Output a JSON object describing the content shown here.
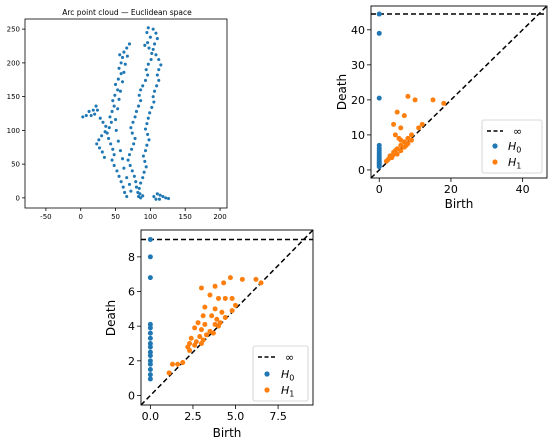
{
  "chart_data": [
    {
      "type": "scatter",
      "title": "Arc point cloud — Euclidean space",
      "xlabel": "",
      "ylabel": "",
      "xlim": [
        -80,
        210
      ],
      "ylim": [
        -15,
        265
      ],
      "x_ticks": [
        -50,
        0,
        50,
        100,
        150,
        200
      ],
      "y_ticks": [
        0,
        50,
        100,
        150,
        200,
        250
      ],
      "grid": false,
      "color": "#1f77b4",
      "series": [
        {
          "name": "",
          "points": [
            [
              95,
              245
            ],
            [
              97,
              252
            ],
            [
              100,
              238
            ],
            [
              96,
              230
            ],
            [
              92,
              226
            ],
            [
              98,
              222
            ],
            [
              102,
              214
            ],
            [
              101,
              205
            ],
            [
              97,
              198
            ],
            [
              94,
              190
            ],
            [
              96,
              182
            ],
            [
              93,
              174
            ],
            [
              89,
              166
            ],
            [
              86,
              160
            ],
            [
              84,
              152
            ],
            [
              86,
              144
            ],
            [
              83,
              136
            ],
            [
              80,
              128
            ],
            [
              78,
              120
            ],
            [
              75,
              112
            ],
            [
              72,
              104
            ],
            [
              74,
              96
            ],
            [
              78,
              88
            ],
            [
              76,
              80
            ],
            [
              73,
              72
            ],
            [
              70,
              64
            ],
            [
              68,
              56
            ],
            [
              71,
              48
            ],
            [
              74,
              40
            ],
            [
              77,
              32
            ],
            [
              79,
              24
            ],
            [
              80,
              16
            ],
            [
              82,
              8
            ],
            [
              83,
              2
            ],
            [
              86,
              0
            ],
            [
              89,
              3
            ],
            [
              104,
              250
            ],
            [
              108,
              244
            ],
            [
              110,
              236
            ],
            [
              106,
              228
            ],
            [
              104,
              220
            ],
            [
              108,
              212
            ],
            [
              112,
              205
            ],
            [
              115,
              197
            ],
            [
              112,
              190
            ],
            [
              110,
              182
            ],
            [
              112,
              174
            ],
            [
              109,
              166
            ],
            [
              106,
              158
            ],
            [
              104,
              150
            ],
            [
              105,
              142
            ],
            [
              102,
              134
            ],
            [
              99,
              126
            ],
            [
              97,
              118
            ],
            [
              95,
              110
            ],
            [
              93,
              102
            ],
            [
              96,
              94
            ],
            [
              98,
              86
            ],
            [
              95,
              78
            ],
            [
              93,
              70
            ],
            [
              90,
              62
            ],
            [
              92,
              54
            ],
            [
              94,
              46
            ],
            [
              91,
              38
            ],
            [
              89,
              30
            ],
            [
              86,
              22
            ],
            [
              84,
              14
            ],
            [
              85,
              6
            ],
            [
              56,
              212
            ],
            [
              60,
              208
            ],
            [
              58,
              200
            ],
            [
              55,
              192
            ],
            [
              58,
              184
            ],
            [
              54,
              176
            ],
            [
              50,
              168
            ],
            [
              53,
              160
            ],
            [
              49,
              152
            ],
            [
              46,
              144
            ],
            [
              48,
              136
            ],
            [
              45,
              128
            ],
            [
              42,
              120
            ],
            [
              44,
              112
            ],
            [
              41,
              104
            ],
            [
              38,
              96
            ],
            [
              40,
              88
            ],
            [
              43,
              80
            ],
            [
              46,
              72
            ],
            [
              48,
              64
            ],
            [
              45,
              56
            ],
            [
              48,
              48
            ],
            [
              52,
              40
            ],
            [
              55,
              32
            ],
            [
              58,
              24
            ],
            [
              61,
              16
            ],
            [
              63,
              8
            ],
            [
              66,
              2
            ],
            [
              62,
              216
            ],
            [
              66,
              222
            ],
            [
              70,
              228
            ],
            [
              67,
              210
            ],
            [
              64,
              198
            ],
            [
              62,
              186
            ],
            [
              60,
              172
            ],
            [
              57,
              158
            ],
            [
              55,
              146
            ],
            [
              53,
              132
            ],
            [
              50,
              116
            ],
            [
              51,
              100
            ],
            [
              54,
              84
            ],
            [
              57,
              70
            ],
            [
              60,
              58
            ],
            [
              62,
              44
            ],
            [
              66,
              30
            ],
            [
              70,
              20
            ],
            [
              72,
              10
            ],
            [
              18,
              130
            ],
            [
              22,
              136
            ],
            [
              24,
              130
            ],
            [
              20,
              124
            ],
            [
              15,
              122
            ],
            [
              12,
              128
            ],
            [
              8,
              122
            ],
            [
              3,
              120
            ],
            [
              28,
              118
            ],
            [
              32,
              112
            ],
            [
              36,
              106
            ],
            [
              35,
              98
            ],
            [
              30,
              92
            ],
            [
              26,
              86
            ],
            [
              23,
              80
            ],
            [
              27,
              74
            ],
            [
              31,
              68
            ],
            [
              34,
              60
            ],
            [
              105,
              2
            ],
            [
              110,
              6
            ],
            [
              114,
              4
            ],
            [
              118,
              2
            ],
            [
              122,
              0
            ],
            [
              126,
              -1
            ],
            [
              108,
              -2
            ],
            [
              113,
              -2
            ]
          ]
        }
      ]
    },
    {
      "type": "scatter",
      "title": "",
      "xlabel": "Birth",
      "ylabel": "Death",
      "xlim": [
        -2.3,
        46.8
      ],
      "ylim": [
        -2.3,
        46.8
      ],
      "x_ticks": [
        0,
        20,
        40
      ],
      "y_ticks": [
        0,
        10,
        20,
        30,
        40
      ],
      "infinity_level": 44.5,
      "diagonal": true,
      "legend": {
        "position": "lower-right",
        "entries": [
          "∞",
          "H0",
          "H1"
        ]
      },
      "series": [
        {
          "name": "H0",
          "color": "#1f77b4",
          "points": [
            [
              0,
              44.5
            ],
            [
              0,
              39
            ],
            [
              0,
              20.5
            ],
            [
              0,
              7
            ],
            [
              0,
              6.2
            ],
            [
              0,
              5.5
            ],
            [
              0,
              4.8
            ],
            [
              0,
              4.2
            ],
            [
              0,
              3.6
            ],
            [
              0,
              3.1
            ],
            [
              0,
              2.6
            ],
            [
              0,
              2.1
            ],
            [
              0,
              1.7
            ],
            [
              0,
              1.3
            ],
            [
              0,
              0.9
            ]
          ]
        },
        {
          "name": "H1",
          "color": "#ff7f0e",
          "points": [
            [
              8,
              21
            ],
            [
              10,
              20
            ],
            [
              15,
              20
            ],
            [
              5,
              16.5
            ],
            [
              7,
              15.5
            ],
            [
              4,
              13
            ],
            [
              6,
              12
            ],
            [
              4.5,
              10
            ],
            [
              5.5,
              9
            ],
            [
              6,
              8.5
            ],
            [
              7,
              8
            ],
            [
              8,
              9
            ],
            [
              9,
              8.5
            ],
            [
              7.5,
              7
            ],
            [
              6,
              7
            ],
            [
              5,
              6
            ],
            [
              4,
              5
            ],
            [
              3,
              4
            ],
            [
              3.5,
              3.5
            ],
            [
              2.5,
              3
            ],
            [
              5,
              4.5
            ],
            [
              6,
              5.5
            ],
            [
              7,
              6.5
            ],
            [
              8,
              7.5
            ],
            [
              4.5,
              5.5
            ],
            [
              3.8,
              4.2
            ],
            [
              2,
              2.5
            ],
            [
              9,
              10
            ],
            [
              18,
              19
            ],
            [
              11,
              12
            ],
            [
              12,
              13
            ]
          ]
        }
      ]
    },
    {
      "type": "scatter",
      "title": "",
      "xlabel": "Birth",
      "ylabel": "Death",
      "xlim": [
        -0.55,
        9.55
      ],
      "ylim": [
        -0.55,
        9.55
      ],
      "x_ticks": [
        0.0,
        2.5,
        5.0,
        7.5
      ],
      "x_tick_labels": [
        "0.0",
        "2.5",
        "5.0",
        "7.5"
      ],
      "y_ticks": [
        0,
        2,
        4,
        6,
        8
      ],
      "infinity_level": 9.0,
      "diagonal": true,
      "legend": {
        "position": "lower-right",
        "entries": [
          "∞",
          "H0",
          "H1"
        ]
      },
      "series": [
        {
          "name": "H0",
          "color": "#1f77b4",
          "points": [
            [
              0,
              9.0
            ],
            [
              0,
              8.0
            ],
            [
              0,
              6.8
            ],
            [
              0,
              4.1
            ],
            [
              0,
              3.9
            ],
            [
              0,
              3.6
            ],
            [
              0,
              3.3
            ],
            [
              0,
              3.0
            ],
            [
              0,
              2.8
            ],
            [
              0,
              2.5
            ],
            [
              0,
              2.3
            ],
            [
              0,
              2.0
            ],
            [
              0,
              1.8
            ],
            [
              0,
              1.5
            ],
            [
              0,
              1.2
            ],
            [
              0,
              0.95
            ]
          ]
        },
        {
          "name": "H1",
          "color": "#ff7f0e",
          "points": [
            [
              3.0,
              6.2
            ],
            [
              3.8,
              6.3
            ],
            [
              4.3,
              6.5
            ],
            [
              4.7,
              6.8
            ],
            [
              5.4,
              6.7
            ],
            [
              6.2,
              6.7
            ],
            [
              6.5,
              6.5
            ],
            [
              3.5,
              5.8
            ],
            [
              4.0,
              5.6
            ],
            [
              4.4,
              5.6
            ],
            [
              4.8,
              5.6
            ],
            [
              5.0,
              5.2
            ],
            [
              3.2,
              5.1
            ],
            [
              3.8,
              5.0
            ],
            [
              4.2,
              4.8
            ],
            [
              4.8,
              4.9
            ],
            [
              3.1,
              4.6
            ],
            [
              3.6,
              4.6
            ],
            [
              3.9,
              4.4
            ],
            [
              4.4,
              4.5
            ],
            [
              2.8,
              4.2
            ],
            [
              3.2,
              4.1
            ],
            [
              3.8,
              4.1
            ],
            [
              4.0,
              4.0
            ],
            [
              2.6,
              3.9
            ],
            [
              3.0,
              3.8
            ],
            [
              3.5,
              3.7
            ],
            [
              4.1,
              4.2
            ],
            [
              2.4,
              3.3
            ],
            [
              2.9,
              3.4
            ],
            [
              3.3,
              3.5
            ],
            [
              3.7,
              3.6
            ],
            [
              2.3,
              3.0
            ],
            [
              2.7,
              3.1
            ],
            [
              3.1,
              3.2
            ],
            [
              2.2,
              2.8
            ],
            [
              2.6,
              2.9
            ],
            [
              3.0,
              3.0
            ],
            [
              2.3,
              2.6
            ],
            [
              1.3,
              1.8
            ],
            [
              1.6,
              1.8
            ],
            [
              1.9,
              1.9
            ],
            [
              1.1,
              1.3
            ]
          ]
        }
      ]
    }
  ]
}
